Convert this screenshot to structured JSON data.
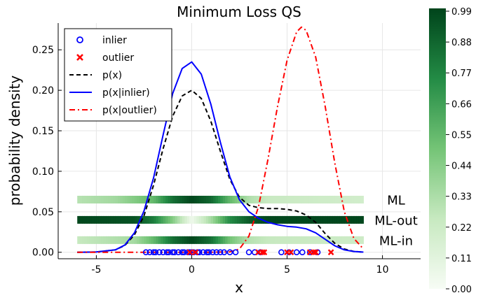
{
  "chart_data": {
    "type": "line",
    "title": "Minimum Loss QS",
    "xlabel": "x",
    "ylabel": "probability density",
    "xlim": [
      -7,
      12
    ],
    "ylim": [
      -0.008,
      0.283
    ],
    "xticks": [
      -5,
      0,
      5,
      10
    ],
    "xtick_labels": [
      "-5",
      "0",
      "5",
      "10"
    ],
    "yticks": [
      0.0,
      0.05,
      0.1,
      0.15,
      0.2,
      0.25
    ],
    "ytick_labels": [
      "0.00",
      "0.05",
      "0.10",
      "0.15",
      "0.20",
      "0.25"
    ],
    "grid": true,
    "legend_position": "top-left",
    "legend": [
      {
        "label": "inlier",
        "marker": "circle",
        "color": "#0000ff"
      },
      {
        "label": "outlier",
        "marker": "x",
        "color": "#ff0000"
      },
      {
        "label": "p(x)",
        "style": "dashed",
        "color": "#000000"
      },
      {
        "label": "p(x|inlier)",
        "style": "solid",
        "color": "#0000ff"
      },
      {
        "label": "p(x|outlier)",
        "style": "dashdot",
        "color": "#ff0000"
      }
    ],
    "series": [
      {
        "name": "p(x)",
        "style": "dashed",
        "color": "#000000",
        "x": [
          -6,
          -5,
          -4,
          -3.5,
          -3,
          -2.5,
          -2,
          -1.5,
          -1,
          -0.5,
          0,
          0.5,
          1,
          1.5,
          2,
          2.5,
          3,
          3.5,
          4,
          4.5,
          5,
          5.5,
          6,
          6.5,
          7,
          7.5,
          8,
          8.5,
          9
        ],
        "y": [
          0.0,
          0.0003,
          0.003,
          0.0085,
          0.0215,
          0.045,
          0.083,
          0.128,
          0.168,
          0.193,
          0.2,
          0.19,
          0.162,
          0.125,
          0.09,
          0.068,
          0.058,
          0.055,
          0.054,
          0.054,
          0.053,
          0.051,
          0.046,
          0.037,
          0.023,
          0.011,
          0.004,
          0.001,
          0.0002
        ]
      },
      {
        "name": "p(x|inlier)",
        "style": "solid",
        "color": "#0000ff",
        "x": [
          -6,
          -5,
          -4,
          -3.5,
          -3,
          -2.5,
          -2,
          -1.5,
          -1,
          -0.5,
          0,
          0.5,
          1,
          1.5,
          2,
          2.5,
          3,
          3.5,
          4,
          4.5,
          5,
          5.5,
          6,
          6.5,
          7,
          7.5,
          8,
          8.5,
          9
        ],
        "y": [
          0.0,
          0.0004,
          0.003,
          0.009,
          0.024,
          0.051,
          0.092,
          0.145,
          0.196,
          0.227,
          0.235,
          0.22,
          0.183,
          0.136,
          0.093,
          0.065,
          0.05,
          0.042,
          0.037,
          0.034,
          0.032,
          0.031,
          0.029,
          0.024,
          0.016,
          0.008,
          0.003,
          0.001,
          0.0002
        ]
      },
      {
        "name": "p(x|outlier)",
        "style": "dashdot",
        "color": "#ff0000",
        "x": [
          -6,
          -2,
          1,
          2,
          2.5,
          3,
          3.5,
          4,
          4.5,
          5,
          5.5,
          5.75,
          6,
          6.5,
          7,
          7.5,
          8,
          8.5,
          9
        ],
        "y": [
          0.0,
          0.0,
          0.0,
          0.0005,
          0.004,
          0.02,
          0.056,
          0.115,
          0.18,
          0.237,
          0.272,
          0.278,
          0.274,
          0.241,
          0.18,
          0.11,
          0.05,
          0.017,
          0.004
        ]
      },
      {
        "name": "inlier",
        "type": "scatter",
        "marker": "circle",
        "color": "#0000ff",
        "y_level": 0.0,
        "x": [
          -2.4,
          -2.2,
          -2.0,
          -1.9,
          -1.7,
          -1.5,
          -1.3,
          -1.2,
          -1.0,
          -0.9,
          -0.7,
          -0.5,
          -0.4,
          -0.2,
          -0.1,
          0.0,
          0.1,
          0.3,
          0.4,
          0.6,
          0.8,
          0.9,
          1.1,
          1.3,
          1.5,
          1.7,
          2.0,
          2.3,
          3.0,
          3.3,
          3.6,
          4.7,
          5.1,
          5.5,
          5.8,
          6.2,
          6.6
        ]
      },
      {
        "name": "outlier",
        "type": "scatter",
        "marker": "x",
        "color": "#ff0000",
        "y_level": 0.0,
        "x": [
          -0.1,
          0.2,
          3.5,
          3.7,
          3.8,
          5.0,
          5.2,
          6.2,
          6.4,
          6.5,
          7.3
        ]
      }
    ],
    "heat_bands": [
      {
        "label": "ML",
        "y_center": 0.065,
        "stops": [
          [
            -6,
            0.3
          ],
          [
            -4,
            0.36
          ],
          [
            -2,
            0.55
          ],
          [
            -1,
            0.85
          ],
          [
            0,
            0.99
          ],
          [
            1,
            0.88
          ],
          [
            2,
            0.55
          ],
          [
            3,
            0.32
          ],
          [
            4,
            0.24
          ],
          [
            6,
            0.22
          ],
          [
            9,
            0.2
          ]
        ]
      },
      {
        "label": "ML-out",
        "y_center": 0.04,
        "stops": [
          [
            -6,
            0.99
          ],
          [
            -3,
            0.95
          ],
          [
            -2,
            0.8
          ],
          [
            -1,
            0.45
          ],
          [
            0,
            0.04
          ],
          [
            1,
            0.35
          ],
          [
            2,
            0.75
          ],
          [
            3,
            0.92
          ],
          [
            4,
            0.99
          ],
          [
            9,
            0.99
          ]
        ]
      },
      {
        "label": "ML-in",
        "y_center": 0.015,
        "stops": [
          [
            -6,
            0.25
          ],
          [
            -3,
            0.35
          ],
          [
            -2,
            0.55
          ],
          [
            -1,
            0.85
          ],
          [
            0,
            0.99
          ],
          [
            1,
            0.85
          ],
          [
            2,
            0.5
          ],
          [
            3,
            0.3
          ],
          [
            4,
            0.25
          ],
          [
            9,
            0.22
          ]
        ]
      }
    ],
    "band_x_range": [
      -6,
      9
    ],
    "colorbar": {
      "min": 0.0,
      "max": 1.0,
      "ticks": [
        0.0,
        0.11,
        0.22,
        0.33,
        0.44,
        0.55,
        0.66,
        0.77,
        0.88,
        0.99
      ],
      "tick_labels": [
        "0.00",
        "0.11",
        "0.22",
        "0.33",
        "0.44",
        "0.55",
        "0.66",
        "0.77",
        "0.88",
        "0.99"
      ],
      "colormap": "Greens",
      "color_low": "#f7fcf5",
      "color_mid": "#74c476",
      "color_high": "#00441b"
    }
  }
}
